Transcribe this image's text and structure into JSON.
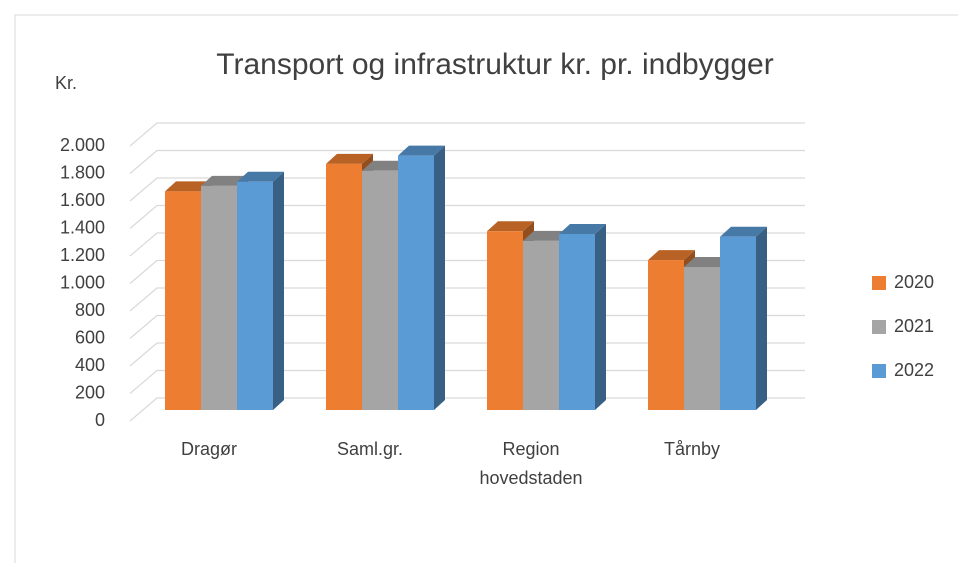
{
  "chart_data": {
    "type": "bar3d",
    "title": "Transport og infrastruktur kr. pr. indbygger",
    "y_label": "Kr.",
    "categories": [
      "Dragør",
      "Saml.gr.",
      "Region hovedstaden",
      "Tårnby"
    ],
    "series": [
      {
        "name": "2020",
        "color": "#ed7d31",
        "values": [
          1590,
          1790,
          1300,
          1090
        ]
      },
      {
        "name": "2021",
        "color": "#a5a5a5",
        "values": [
          1630,
          1740,
          1230,
          1040
        ]
      },
      {
        "name": "2022",
        "color": "#5b9bd5",
        "values": [
          1660,
          1850,
          1280,
          1260
        ]
      }
    ],
    "ylim": [
      0,
      2000
    ],
    "yticks": [
      0,
      200,
      400,
      600,
      800,
      {
        "value": 1000,
        "label": "1.000"
      },
      {
        "value": 1200,
        "label": "1.200"
      },
      {
        "value": 1400,
        "label": "1.400"
      },
      {
        "value": 1600,
        "label": "1.600"
      },
      {
        "value": 1800,
        "label": "1.800"
      },
      {
        "value": 2000,
        "label": "2.000"
      }
    ],
    "grid": true,
    "legend": "right"
  }
}
